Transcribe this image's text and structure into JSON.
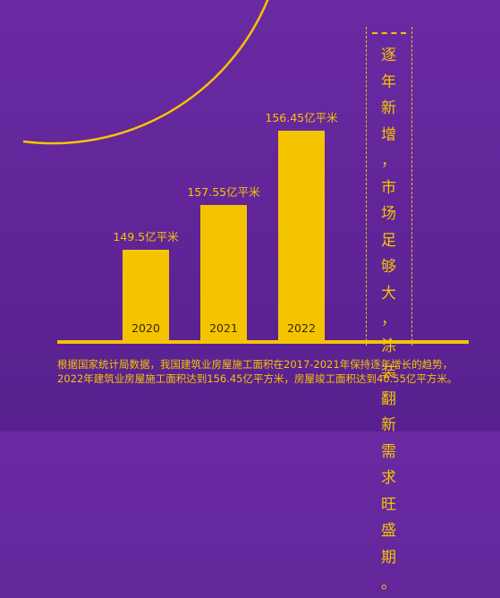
{
  "chart_data": {
    "type": "bar",
    "categories": [
      "2020",
      "2021",
      "2022"
    ],
    "values": [
      149.5,
      157.55,
      156.45
    ],
    "data_labels": [
      "149.5亿平米",
      "157.55亿平米",
      "156.45亿平米"
    ],
    "unit": "亿平米"
  },
  "side_text": [
    "逐",
    "年",
    "新",
    "增",
    "，",
    "市",
    "场",
    "足",
    "够",
    "大",
    "，",
    "涂",
    "装",
    "翻",
    "新",
    "需",
    "求",
    "旺",
    "盛",
    "期",
    "。"
  ],
  "note": "根据国家统计局数据，我国建筑业房屋施工面积在2017-2021年保持逐年增长的趋势，2022年建筑业房屋施工面积达到156.45亿平方米，房屋竣工面积达到40.55亿平方米。",
  "colors": {
    "bar": "#f5c400",
    "text": "#f5c400",
    "label_on_bar": "#3a2a00",
    "bg_top": "#6a2aa2",
    "bg_bottom": "#58208f"
  }
}
